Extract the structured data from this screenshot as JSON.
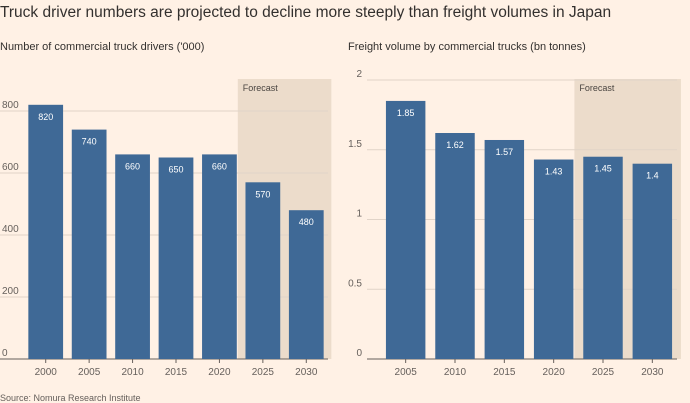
{
  "title": "Truck driver numbers are projected to decline more steeply than freight volumes in Japan",
  "source": "Source: Nomura Research Institute",
  "colors": {
    "background": "#fff1e5",
    "bar": "#3f6996",
    "forecast_shade": "#ecdccb",
    "grid": "#e1d4c8",
    "axis": "#66605c"
  },
  "chart_data": [
    {
      "type": "bar",
      "title": "Number of commercial truck drivers ('000)",
      "categories": [
        "2000",
        "2005",
        "2010",
        "2015",
        "2020",
        "2025",
        "2030"
      ],
      "values": [
        820,
        740,
        660,
        650,
        660,
        570,
        480
      ],
      "value_labels": [
        "820",
        "740",
        "660",
        "650",
        "660",
        "570",
        "480"
      ],
      "ylim": [
        0,
        900
      ],
      "yticks": [
        0,
        200,
        400,
        600,
        800
      ],
      "ytick_labels": [
        "0",
        "200",
        "400",
        "600",
        "800"
      ],
      "forecast_label": "Forecast",
      "forecast_from": "2025",
      "grid": true
    },
    {
      "type": "bar",
      "title": "Freight volume by commercial trucks (bn tonnes)",
      "categories": [
        "2005",
        "2010",
        "2015",
        "2020",
        "2025",
        "2030"
      ],
      "values": [
        1.85,
        1.62,
        1.57,
        1.43,
        1.45,
        1.4
      ],
      "value_labels": [
        "1.85",
        "1.62",
        "1.57",
        "1.43",
        "1.45",
        "1.4"
      ],
      "ylim": [
        0,
        2
      ],
      "yticks": [
        0,
        0.5,
        1,
        1.5,
        2
      ],
      "ytick_labels": [
        "0",
        "0.5",
        "1",
        "1.5",
        "2"
      ],
      "forecast_label": "Forecast",
      "forecast_from": "2025",
      "grid": true
    }
  ]
}
